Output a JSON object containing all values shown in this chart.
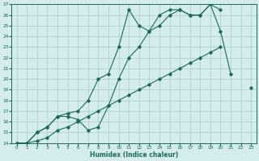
{
  "xlabel": "Humidex (Indice chaleur)",
  "bg_color": "#d4eceb",
  "line_color": "#1a6b5a",
  "grid_color": "#a8cdc8",
  "xlim": [
    -0.5,
    23.5
  ],
  "ylim": [
    14,
    27
  ],
  "xticks": [
    0,
    1,
    2,
    3,
    4,
    5,
    6,
    7,
    8,
    9,
    10,
    11,
    12,
    13,
    14,
    15,
    16,
    17,
    18,
    19,
    20,
    21,
    22,
    23
  ],
  "yticks": [
    14,
    15,
    16,
    17,
    18,
    19,
    20,
    21,
    22,
    23,
    24,
    25,
    26,
    27
  ],
  "line1_x": [
    0,
    1,
    2,
    3,
    4,
    5,
    6,
    7,
    8,
    9,
    10,
    11,
    12,
    13,
    14,
    15,
    16,
    17,
    18,
    19,
    20,
    21
  ],
  "line1_y": [
    14,
    14,
    15,
    15.5,
    16.5,
    16.5,
    16.2,
    15.2,
    15.5,
    17.5,
    20,
    22,
    23,
    24.5,
    25,
    26,
    26.5,
    26,
    26,
    27,
    24.5,
    20.5
  ],
  "line2_x": [
    0,
    1,
    2,
    3,
    4,
    5,
    6,
    7,
    8,
    9,
    10,
    11,
    12,
    13,
    14,
    15,
    16,
    17,
    18,
    19,
    20
  ],
  "line2_y": [
    14,
    14,
    15,
    15.5,
    16.5,
    16.8,
    17,
    18,
    20,
    20.5,
    23,
    26.5,
    25,
    24.5,
    26,
    26.5,
    26.5,
    26,
    26,
    27,
    26.5
  ],
  "line3_x": [
    0,
    1,
    2,
    3,
    4,
    5,
    6,
    7,
    8,
    9,
    10,
    11,
    12,
    13,
    14,
    15,
    16,
    17,
    18,
    19,
    20,
    23
  ],
  "line3_y": [
    14,
    14,
    14.2,
    14.5,
    15.2,
    15.5,
    16,
    16.5,
    17,
    17.5,
    18,
    18.5,
    19,
    19.5,
    20,
    20.5,
    21,
    21.5,
    22,
    22.5,
    23,
    19.2
  ]
}
